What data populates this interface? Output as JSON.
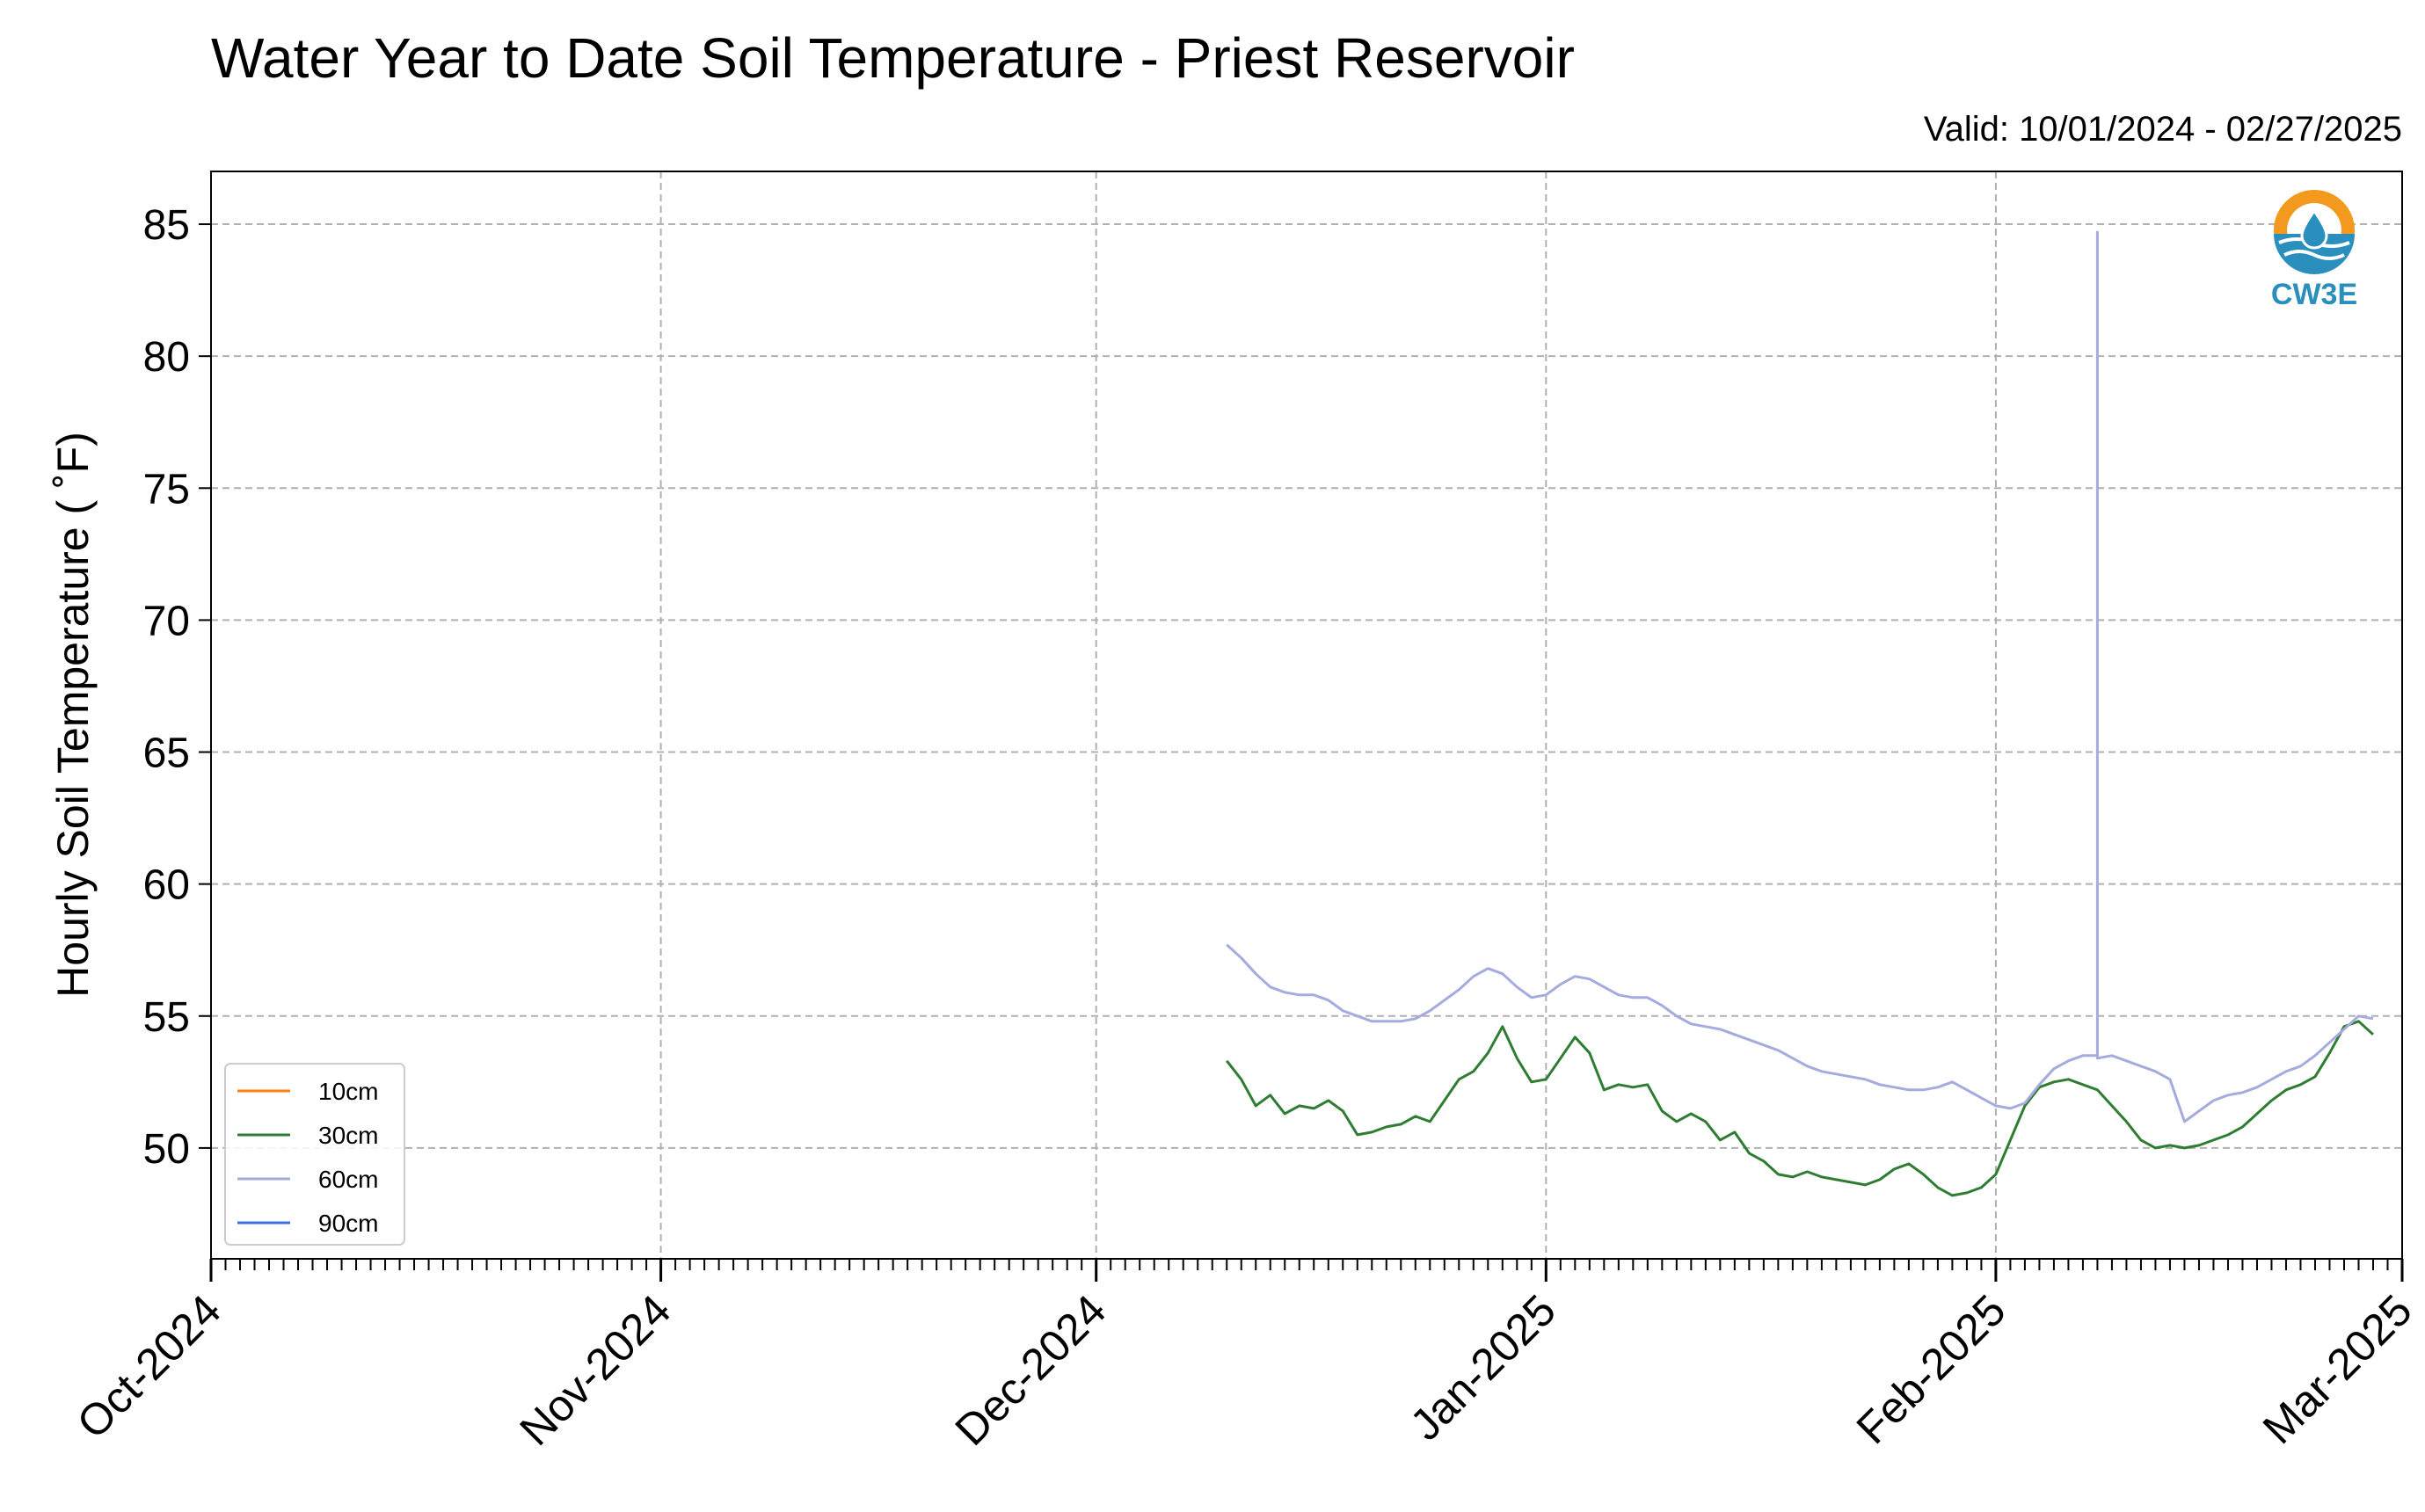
{
  "chart_data": {
    "type": "line",
    "title": "Water Year to Date Soil Temperature - Priest Reservoir",
    "subtitle": "Valid: 10/01/2024 - 02/27/2025",
    "ylabel": "Hourly Soil Temperature ($^\\circ$F)",
    "ylabel_display": "Hourly Soil Temperature ( ˚F)",
    "xlabel": "",
    "ylim": [
      45.8,
      87
    ],
    "yticks": [
      50,
      55,
      60,
      65,
      70,
      75,
      80,
      85
    ],
    "x_domain": [
      "2024-10-01",
      "2025-03-01"
    ],
    "x_major_ticks": [
      {
        "date": "2024-10-01",
        "label": "Oct-2024"
      },
      {
        "date": "2024-11-01",
        "label": "Nov-2024"
      },
      {
        "date": "2024-12-01",
        "label": "Dec-2024"
      },
      {
        "date": "2025-01-01",
        "label": "Jan-2025"
      },
      {
        "date": "2025-02-01",
        "label": "Feb-2025"
      },
      {
        "date": "2025-03-01",
        "label": "Mar-2025"
      }
    ],
    "minor_ticks": "daily",
    "grid": true,
    "legend_position": "lower-left",
    "series": [
      {
        "name": "10cm",
        "color": "#ff7f0e",
        "points": []
      },
      {
        "name": "30cm",
        "color": "#2e7d32",
        "points": [
          [
            "2024-12-10",
            53.3
          ],
          [
            "2024-12-11",
            52.6
          ],
          [
            "2024-12-12",
            51.6
          ],
          [
            "2024-12-13",
            52.0
          ],
          [
            "2024-12-14",
            51.3
          ],
          [
            "2024-12-15",
            51.6
          ],
          [
            "2024-12-16",
            51.5
          ],
          [
            "2024-12-17",
            51.8
          ],
          [
            "2024-12-18",
            51.4
          ],
          [
            "2024-12-19",
            50.5
          ],
          [
            "2024-12-20",
            50.6
          ],
          [
            "2024-12-21",
            50.8
          ],
          [
            "2024-12-22",
            50.9
          ],
          [
            "2024-12-23",
            51.2
          ],
          [
            "2024-12-24",
            51.0
          ],
          [
            "2024-12-25",
            51.8
          ],
          [
            "2024-12-26",
            52.6
          ],
          [
            "2024-12-27",
            52.9
          ],
          [
            "2024-12-28",
            53.6
          ],
          [
            "2024-12-29",
            54.6
          ],
          [
            "2024-12-30",
            53.4
          ],
          [
            "2024-12-31",
            52.5
          ],
          [
            "2025-01-01",
            52.6
          ],
          [
            "2025-01-02",
            53.4
          ],
          [
            "2025-01-03",
            54.2
          ],
          [
            "2025-01-04",
            53.6
          ],
          [
            "2025-01-05",
            52.2
          ],
          [
            "2025-01-06",
            52.4
          ],
          [
            "2025-01-07",
            52.3
          ],
          [
            "2025-01-08",
            52.4
          ],
          [
            "2025-01-09",
            51.4
          ],
          [
            "2025-01-10",
            51.0
          ],
          [
            "2025-01-11",
            51.3
          ],
          [
            "2025-01-12",
            51.0
          ],
          [
            "2025-01-13",
            50.3
          ],
          [
            "2025-01-14",
            50.6
          ],
          [
            "2025-01-15",
            49.8
          ],
          [
            "2025-01-16",
            49.5
          ],
          [
            "2025-01-17",
            49.0
          ],
          [
            "2025-01-18",
            48.9
          ],
          [
            "2025-01-19",
            49.1
          ],
          [
            "2025-01-20",
            48.9
          ],
          [
            "2025-01-21",
            48.8
          ],
          [
            "2025-01-22",
            48.7
          ],
          [
            "2025-01-23",
            48.6
          ],
          [
            "2025-01-24",
            48.8
          ],
          [
            "2025-01-25",
            49.2
          ],
          [
            "2025-01-26",
            49.4
          ],
          [
            "2025-01-27",
            49.0
          ],
          [
            "2025-01-28",
            48.5
          ],
          [
            "2025-01-29",
            48.2
          ],
          [
            "2025-01-30",
            48.3
          ],
          [
            "2025-01-31",
            48.5
          ],
          [
            "2025-02-01",
            49.0
          ],
          [
            "2025-02-02",
            50.3
          ],
          [
            "2025-02-03",
            51.6
          ],
          [
            "2025-02-04",
            52.3
          ],
          [
            "2025-02-05",
            52.5
          ],
          [
            "2025-02-06",
            52.6
          ],
          [
            "2025-02-07",
            52.4
          ],
          [
            "2025-02-08",
            52.2
          ],
          [
            "2025-02-09",
            51.6
          ],
          [
            "2025-02-10",
            51.0
          ],
          [
            "2025-02-11",
            50.3
          ],
          [
            "2025-02-12",
            50.0
          ],
          [
            "2025-02-13",
            50.1
          ],
          [
            "2025-02-14",
            50.0
          ],
          [
            "2025-02-15",
            50.1
          ],
          [
            "2025-02-16",
            50.3
          ],
          [
            "2025-02-17",
            50.5
          ],
          [
            "2025-02-18",
            50.8
          ],
          [
            "2025-02-19",
            51.3
          ],
          [
            "2025-02-20",
            51.8
          ],
          [
            "2025-02-21",
            52.2
          ],
          [
            "2025-02-22",
            52.4
          ],
          [
            "2025-02-23",
            52.7
          ],
          [
            "2025-02-24",
            53.6
          ],
          [
            "2025-02-25",
            54.6
          ],
          [
            "2025-02-26",
            54.8
          ],
          [
            "2025-02-27",
            54.3
          ]
        ]
      },
      {
        "name": "60cm",
        "color": "#a5abde",
        "points": [
          [
            "2024-12-10",
            57.7
          ],
          [
            "2024-12-11",
            57.2
          ],
          [
            "2024-12-12",
            56.6
          ],
          [
            "2024-12-13",
            56.1
          ],
          [
            "2024-12-14",
            55.9
          ],
          [
            "2024-12-15",
            55.8
          ],
          [
            "2024-12-16",
            55.8
          ],
          [
            "2024-12-17",
            55.6
          ],
          [
            "2024-12-18",
            55.2
          ],
          [
            "2024-12-19",
            55.0
          ],
          [
            "2024-12-20",
            54.8
          ],
          [
            "2024-12-21",
            54.8
          ],
          [
            "2024-12-22",
            54.8
          ],
          [
            "2024-12-23",
            54.9
          ],
          [
            "2024-12-24",
            55.2
          ],
          [
            "2024-12-25",
            55.6
          ],
          [
            "2024-12-26",
            56.0
          ],
          [
            "2024-12-27",
            56.5
          ],
          [
            "2024-12-28",
            56.8
          ],
          [
            "2024-12-29",
            56.6
          ],
          [
            "2024-12-30",
            56.1
          ],
          [
            "2024-12-31",
            55.7
          ],
          [
            "2025-01-01",
            55.8
          ],
          [
            "2025-01-02",
            56.2
          ],
          [
            "2025-01-03",
            56.5
          ],
          [
            "2025-01-04",
            56.4
          ],
          [
            "2025-01-05",
            56.1
          ],
          [
            "2025-01-06",
            55.8
          ],
          [
            "2025-01-07",
            55.7
          ],
          [
            "2025-01-08",
            55.7
          ],
          [
            "2025-01-09",
            55.4
          ],
          [
            "2025-01-10",
            55.0
          ],
          [
            "2025-01-11",
            54.7
          ],
          [
            "2025-01-12",
            54.6
          ],
          [
            "2025-01-13",
            54.5
          ],
          [
            "2025-01-14",
            54.3
          ],
          [
            "2025-01-15",
            54.1
          ],
          [
            "2025-01-16",
            53.9
          ],
          [
            "2025-01-17",
            53.7
          ],
          [
            "2025-01-18",
            53.4
          ],
          [
            "2025-01-19",
            53.1
          ],
          [
            "2025-01-20",
            52.9
          ],
          [
            "2025-01-21",
            52.8
          ],
          [
            "2025-01-22",
            52.7
          ],
          [
            "2025-01-23",
            52.6
          ],
          [
            "2025-01-24",
            52.4
          ],
          [
            "2025-01-25",
            52.3
          ],
          [
            "2025-01-26",
            52.2
          ],
          [
            "2025-01-27",
            52.2
          ],
          [
            "2025-01-28",
            52.3
          ],
          [
            "2025-01-29",
            52.5
          ],
          [
            "2025-01-30",
            52.2
          ],
          [
            "2025-01-31",
            51.9
          ],
          [
            "2025-02-01",
            51.6
          ],
          [
            "2025-02-02",
            51.5
          ],
          [
            "2025-02-03",
            51.7
          ],
          [
            "2025-02-04",
            52.4
          ],
          [
            "2025-02-05",
            53.0
          ],
          [
            "2025-02-06",
            53.3
          ],
          [
            "2025-02-07",
            53.5
          ],
          [
            "2025-02-08",
            53.5
          ],
          [
            "2025-02-08",
            84.7
          ],
          [
            "2025-02-08",
            53.4
          ],
          [
            "2025-02-09",
            53.5
          ],
          [
            "2025-02-10",
            53.3
          ],
          [
            "2025-02-11",
            53.1
          ],
          [
            "2025-02-12",
            52.9
          ],
          [
            "2025-02-13",
            52.6
          ],
          [
            "2025-02-14",
            51.0
          ],
          [
            "2025-02-15",
            51.4
          ],
          [
            "2025-02-16",
            51.8
          ],
          [
            "2025-02-17",
            52.0
          ],
          [
            "2025-02-18",
            52.1
          ],
          [
            "2025-02-19",
            52.3
          ],
          [
            "2025-02-20",
            52.6
          ],
          [
            "2025-02-21",
            52.9
          ],
          [
            "2025-02-22",
            53.1
          ],
          [
            "2025-02-23",
            53.5
          ],
          [
            "2025-02-24",
            54.0
          ],
          [
            "2025-02-25",
            54.5
          ],
          [
            "2025-02-26",
            55.0
          ],
          [
            "2025-02-27",
            54.9
          ]
        ]
      },
      {
        "name": "90cm",
        "color": "#3d6fe0",
        "points": []
      }
    ]
  },
  "logo": {
    "text": "CW3E",
    "ring_color": "#f39a1e",
    "wave_color": "#2a8fbd"
  }
}
